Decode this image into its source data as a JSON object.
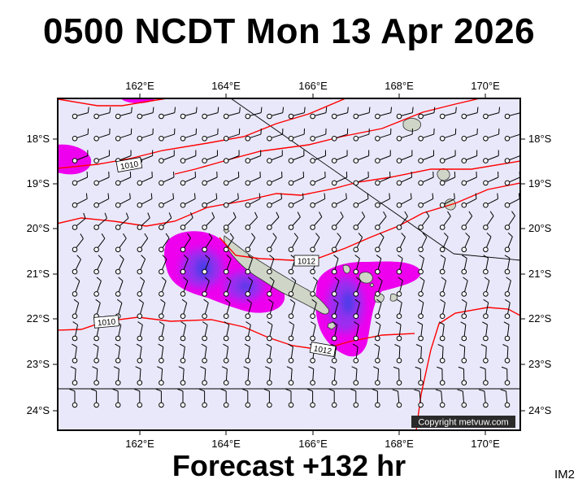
{
  "header": {
    "title": "0500 NCDT Mon 13 Apr 2026"
  },
  "footer": {
    "forecast": "Forecast +132 hr",
    "code": "IM2"
  },
  "map": {
    "lon_labels": [
      "162°E",
      "164°E",
      "166°E",
      "168°E",
      "170°E"
    ],
    "lat_labels": [
      "18°S",
      "19°S",
      "20°S",
      "21°S",
      "22°S",
      "23°S",
      "24°S"
    ],
    "isobar_labels": [
      "1010",
      "1012",
      "1010",
      "1012"
    ],
    "copyright": "Copyright metvuw.com",
    "colors": {
      "background": "#e8e8fa",
      "isobar": "#ff0000",
      "rain_light": "#ee00ee",
      "rain_medium": "#9a2ef0",
      "rain_heavy": "#4a3ae8",
      "land": "#cfd6c8"
    }
  }
}
